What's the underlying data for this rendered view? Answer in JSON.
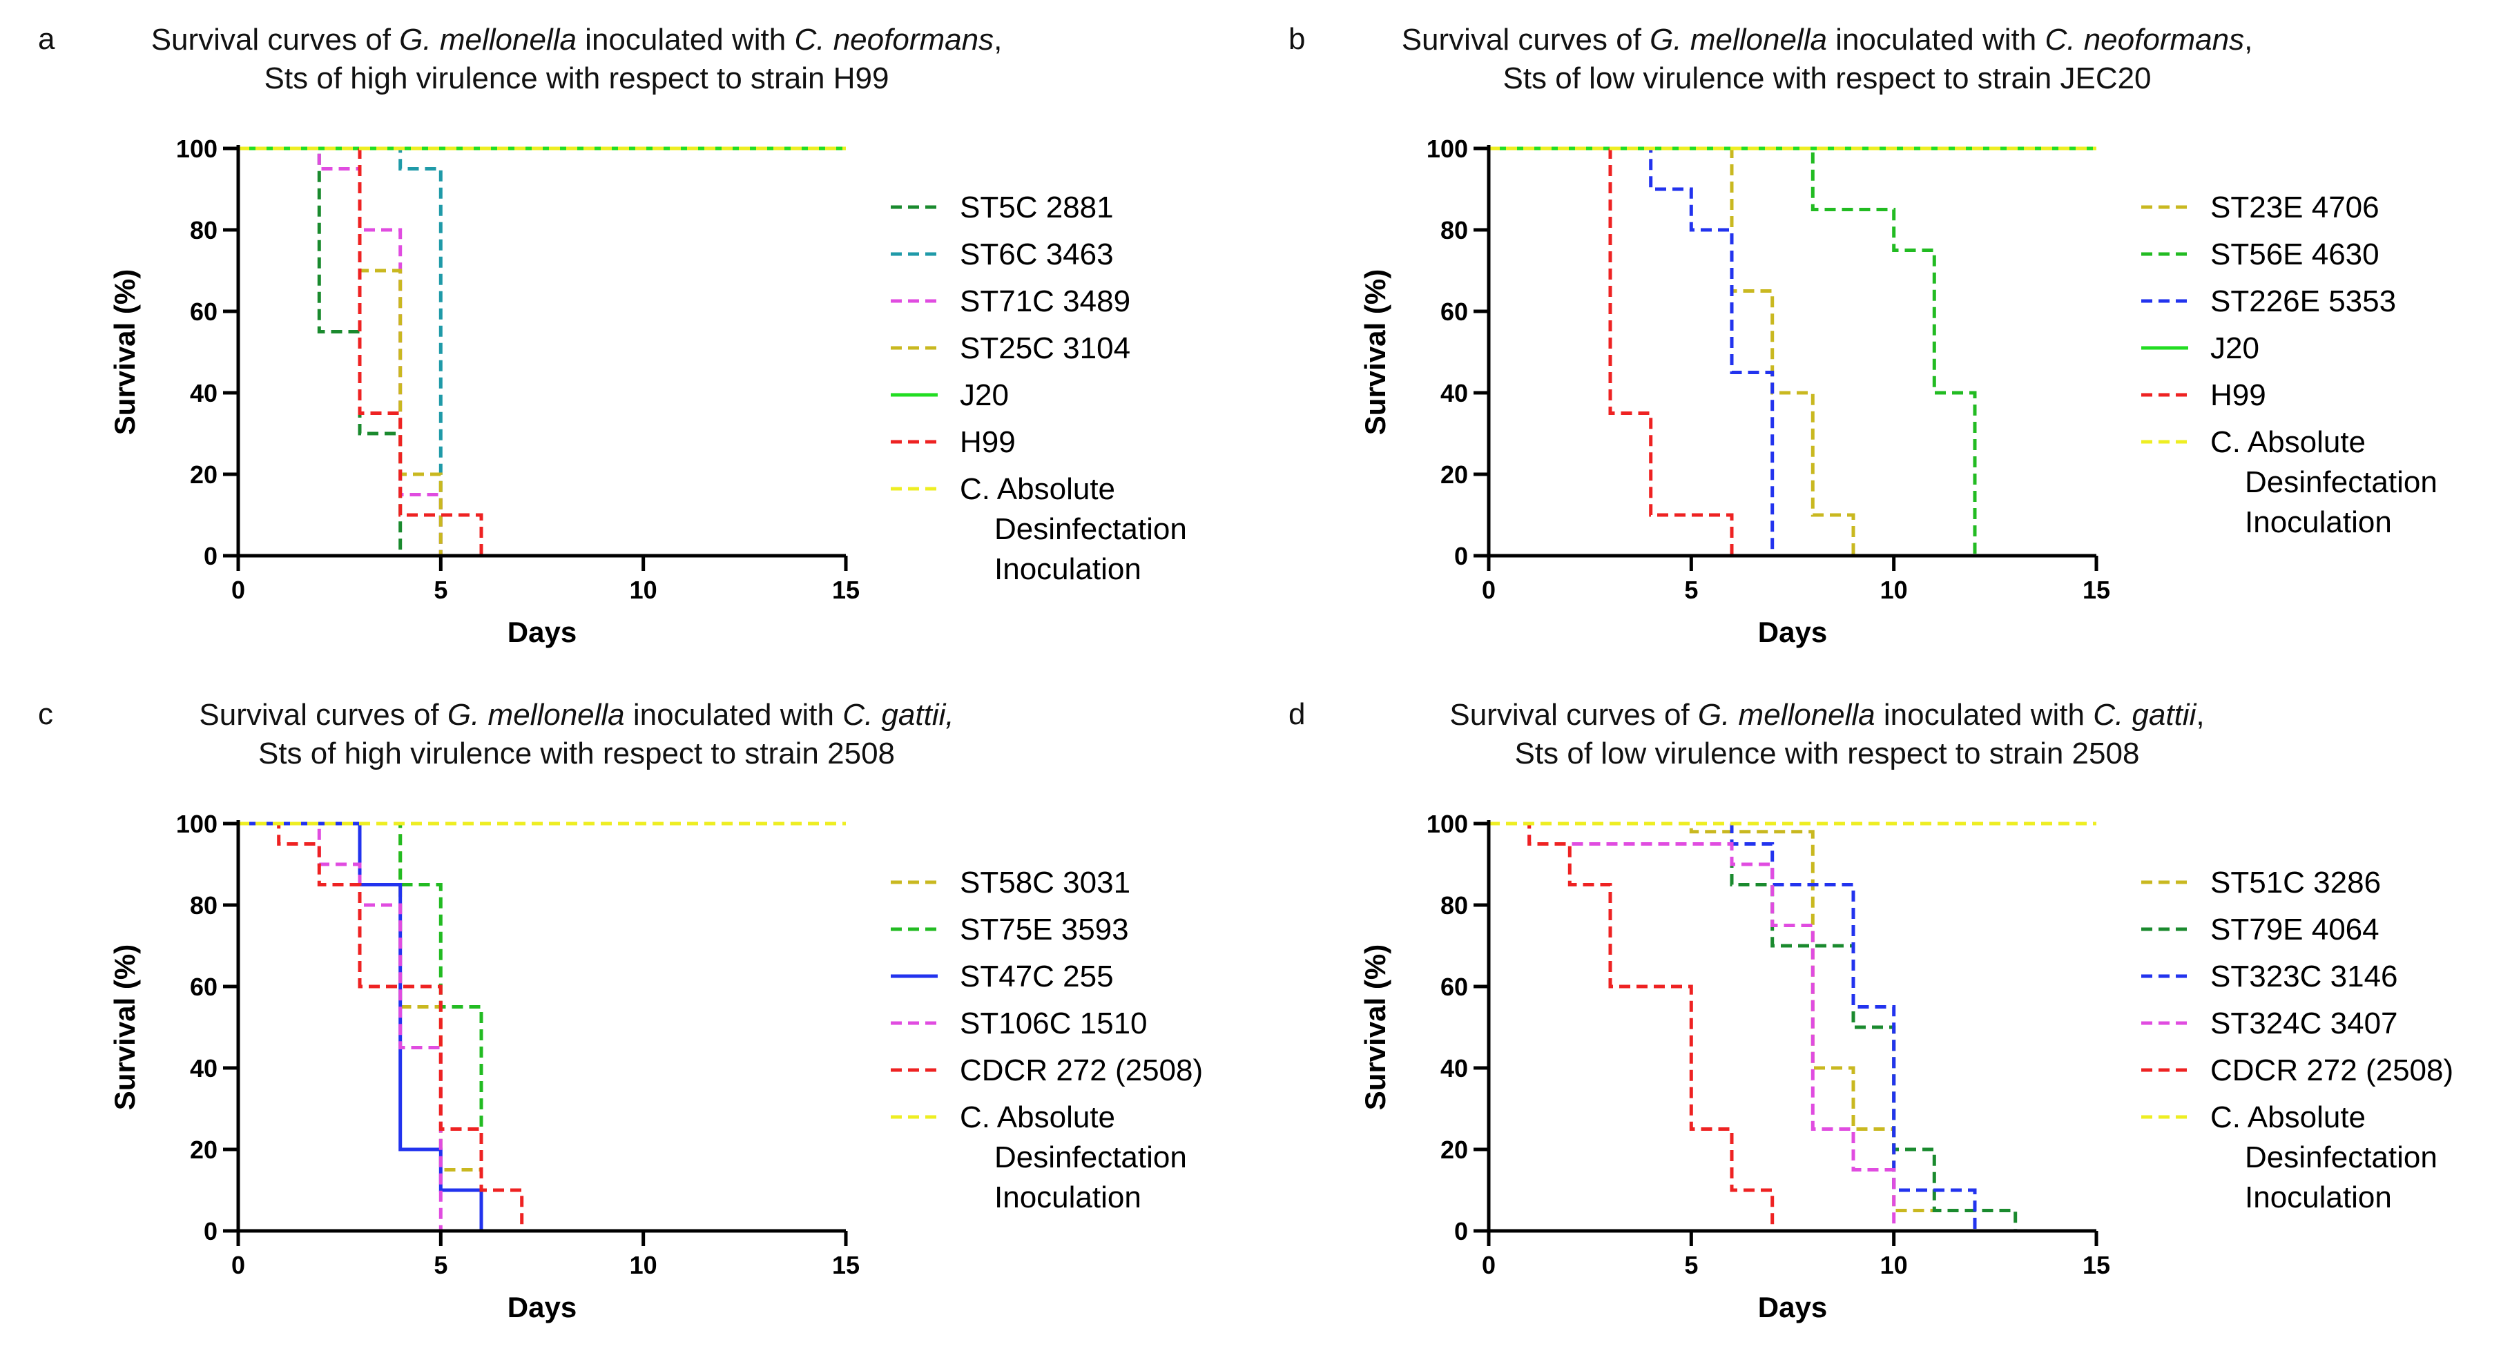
{
  "chart_data": [
    {
      "panel": "a",
      "type": "line",
      "step": true,
      "title_line1_pre": "Survival curves of ",
      "title_line1_it1": "G. mellonella",
      "title_line1_mid": " inoculated with ",
      "title_line1_it2": "C. neoformans",
      "title_line1_post": ",",
      "title_line2": "Sts of high virulence with respect to strain H99",
      "xlabel": "Days",
      "ylabel": "Survival (%)",
      "xlim": [
        0,
        15
      ],
      "ylim": [
        0,
        100
      ],
      "xticks": [
        "0",
        "5",
        "10",
        "15"
      ],
      "yticks": [
        "0",
        "20",
        "40",
        "60",
        "80",
        "100"
      ],
      "legend_position": "right",
      "series": [
        {
          "name": "ST5C 2881",
          "color": "#1a8a2e",
          "dash": true,
          "points": [
            [
              0,
              100
            ],
            [
              2,
              100
            ],
            [
              2,
              55
            ],
            [
              3,
              55
            ],
            [
              3,
              30
            ],
            [
              4,
              30
            ],
            [
              4,
              0
            ]
          ]
        },
        {
          "name": "ST6C 3463",
          "color": "#1f9aa8",
          "dash": true,
          "points": [
            [
              0,
              100
            ],
            [
              4,
              100
            ],
            [
              4,
              95
            ],
            [
              5,
              95
            ],
            [
              5,
              0
            ]
          ]
        },
        {
          "name": "ST71C 3489",
          "color": "#e04ce0",
          "dash": true,
          "points": [
            [
              0,
              100
            ],
            [
              2,
              100
            ],
            [
              2,
              95
            ],
            [
              3,
              95
            ],
            [
              3,
              80
            ],
            [
              4,
              80
            ],
            [
              4,
              15
            ],
            [
              5,
              15
            ],
            [
              5,
              0
            ]
          ]
        },
        {
          "name": "ST25C 3104",
          "color": "#c9b820",
          "dash": true,
          "points": [
            [
              0,
              100
            ],
            [
              3,
              100
            ],
            [
              3,
              70
            ],
            [
              4,
              70
            ],
            [
              4,
              20
            ],
            [
              5,
              20
            ],
            [
              5,
              0
            ]
          ]
        },
        {
          "name": "J20",
          "color": "#22dd22",
          "dash": false,
          "points": [
            [
              0,
              100
            ],
            [
              15,
              100
            ]
          ]
        },
        {
          "name": "H99",
          "color": "#ee2222",
          "dash": true,
          "points": [
            [
              0,
              100
            ],
            [
              3,
              100
            ],
            [
              3,
              35
            ],
            [
              4,
              35
            ],
            [
              4,
              10
            ],
            [
              6,
              10
            ],
            [
              6,
              0
            ]
          ]
        },
        {
          "name": "C. Absolute",
          "color": "#eeee22",
          "dash": true,
          "points": [
            [
              0,
              100
            ],
            [
              15,
              100
            ]
          ]
        }
      ],
      "legend_extra": [
        "Desinfectation",
        "Inoculation"
      ]
    },
    {
      "panel": "b",
      "type": "line",
      "step": true,
      "title_line1_pre": "Survival curves of ",
      "title_line1_it1": "G. mellonella",
      "title_line1_mid": " inoculated with ",
      "title_line1_it2": "C. neoformans",
      "title_line1_post": ",",
      "title_line2": "Sts of low virulence with respect to strain JEC20",
      "xlabel": "Days",
      "ylabel": "Survival (%)",
      "xlim": [
        0,
        15
      ],
      "ylim": [
        0,
        100
      ],
      "xticks": [
        "0",
        "5",
        "10",
        "15"
      ],
      "yticks": [
        "0",
        "20",
        "40",
        "60",
        "80",
        "100"
      ],
      "legend_position": "right",
      "series": [
        {
          "name": "ST23E 4706",
          "color": "#c9b820",
          "dash": true,
          "points": [
            [
              0,
              100
            ],
            [
              6,
              100
            ],
            [
              6,
              65
            ],
            [
              7,
              65
            ],
            [
              7,
              40
            ],
            [
              8,
              40
            ],
            [
              8,
              10
            ],
            [
              9,
              10
            ],
            [
              9,
              0
            ]
          ]
        },
        {
          "name": "ST56E 4630",
          "color": "#22bb22",
          "dash": true,
          "points": [
            [
              0,
              100
            ],
            [
              8,
              100
            ],
            [
              8,
              85
            ],
            [
              10,
              85
            ],
            [
              10,
              75
            ],
            [
              11,
              75
            ],
            [
              11,
              40
            ],
            [
              12,
              40
            ],
            [
              12,
              0
            ]
          ]
        },
        {
          "name": "ST226E 5353",
          "color": "#2233ee",
          "dash": true,
          "points": [
            [
              0,
              100
            ],
            [
              4,
              100
            ],
            [
              4,
              90
            ],
            [
              5,
              90
            ],
            [
              5,
              80
            ],
            [
              6,
              80
            ],
            [
              6,
              45
            ],
            [
              7,
              45
            ],
            [
              7,
              0
            ]
          ]
        },
        {
          "name": "J20",
          "color": "#22dd22",
          "dash": false,
          "points": [
            [
              0,
              100
            ],
            [
              15,
              100
            ]
          ]
        },
        {
          "name": "H99",
          "color": "#ee2222",
          "dash": true,
          "points": [
            [
              0,
              100
            ],
            [
              3,
              100
            ],
            [
              3,
              35
            ],
            [
              4,
              35
            ],
            [
              4,
              10
            ],
            [
              6,
              10
            ],
            [
              6,
              0
            ]
          ]
        },
        {
          "name": "C. Absolute",
          "color": "#eeee22",
          "dash": true,
          "points": [
            [
              0,
              100
            ],
            [
              15,
              100
            ]
          ]
        }
      ],
      "legend_extra": [
        "Desinfectation",
        "Inoculation"
      ]
    },
    {
      "panel": "c",
      "type": "line",
      "step": true,
      "title_line1_pre": "Survival curves of ",
      "title_line1_it1": "G. mellonella",
      "title_line1_mid": " inoculated with ",
      "title_line1_it2": "C. gattii,",
      "title_line1_post": "",
      "title_line2": "Sts of high virulence with respect to strain 2508",
      "xlabel": "Days",
      "ylabel": "Survival (%)",
      "xlim": [
        0,
        15
      ],
      "ylim": [
        0,
        100
      ],
      "xticks": [
        "0",
        "5",
        "10",
        "15"
      ],
      "yticks": [
        "0",
        "20",
        "40",
        "60",
        "80",
        "100"
      ],
      "legend_position": "right",
      "series": [
        {
          "name": "ST58C 3031",
          "color": "#c9b820",
          "dash": true,
          "points": [
            [
              0,
              100
            ],
            [
              4,
              100
            ],
            [
              4,
              55
            ],
            [
              5,
              55
            ],
            [
              5,
              15
            ],
            [
              6,
              15
            ],
            [
              6,
              0
            ]
          ]
        },
        {
          "name": "ST75E 3593",
          "color": "#22bb22",
          "dash": true,
          "points": [
            [
              0,
              100
            ],
            [
              4,
              100
            ],
            [
              4,
              85
            ],
            [
              5,
              85
            ],
            [
              5,
              55
            ],
            [
              6,
              55
            ],
            [
              6,
              0
            ]
          ]
        },
        {
          "name": "ST47C 255",
          "color": "#2233ee",
          "dash": false,
          "points": [
            [
              0,
              100
            ],
            [
              3,
              100
            ],
            [
              3,
              85
            ],
            [
              4,
              85
            ],
            [
              4,
              20
            ],
            [
              5,
              20
            ],
            [
              5,
              10
            ],
            [
              6,
              10
            ],
            [
              6,
              0
            ]
          ]
        },
        {
          "name": "ST106C 1510",
          "color": "#e04ce0",
          "dash": true,
          "points": [
            [
              0,
              100
            ],
            [
              2,
              100
            ],
            [
              2,
              90
            ],
            [
              3,
              90
            ],
            [
              3,
              80
            ],
            [
              4,
              80
            ],
            [
              4,
              45
            ],
            [
              5,
              45
            ],
            [
              5,
              0
            ]
          ]
        },
        {
          "name": "CDCR 272 (2508)",
          "color": "#ee2222",
          "dash": true,
          "points": [
            [
              0,
              100
            ],
            [
              1,
              100
            ],
            [
              1,
              95
            ],
            [
              2,
              95
            ],
            [
              2,
              85
            ],
            [
              3,
              85
            ],
            [
              3,
              60
            ],
            [
              5,
              60
            ],
            [
              5,
              25
            ],
            [
              6,
              25
            ],
            [
              6,
              10
            ],
            [
              7,
              10
            ],
            [
              7,
              0
            ]
          ]
        },
        {
          "name": "C. Absolute",
          "color": "#eeee22",
          "dash": true,
          "points": [
            [
              0,
              100
            ],
            [
              15,
              100
            ]
          ]
        }
      ],
      "legend_extra": [
        "Desinfectation",
        "Inoculation"
      ]
    },
    {
      "panel": "d",
      "type": "line",
      "step": true,
      "title_line1_pre": "Survival curves of ",
      "title_line1_it1": "G. mellonella",
      "title_line1_mid": " inoculated with ",
      "title_line1_it2": "C. gattii",
      "title_line1_post": ",",
      "title_line2": "Sts of low virulence with respect to strain 2508",
      "xlabel": "Days",
      "ylabel": "Survival (%)",
      "xlim": [
        0,
        15
      ],
      "ylim": [
        0,
        100
      ],
      "xticks": [
        "0",
        "5",
        "10",
        "15"
      ],
      "yticks": [
        "0",
        "20",
        "40",
        "60",
        "80",
        "100"
      ],
      "legend_position": "right",
      "series": [
        {
          "name": "ST51C 3286",
          "color": "#c9b820",
          "dash": true,
          "points": [
            [
              0,
              100
            ],
            [
              5,
              100
            ],
            [
              5,
              98
            ],
            [
              8,
              98
            ],
            [
              8,
              40
            ],
            [
              9,
              40
            ],
            [
              9,
              25
            ],
            [
              10,
              25
            ],
            [
              10,
              5
            ],
            [
              12,
              5
            ],
            [
              12,
              0
            ]
          ]
        },
        {
          "name": "ST79E 4064",
          "color": "#1a8a2e",
          "dash": true,
          "points": [
            [
              0,
              100
            ],
            [
              6,
              100
            ],
            [
              6,
              85
            ],
            [
              7,
              85
            ],
            [
              7,
              70
            ],
            [
              9,
              70
            ],
            [
              9,
              50
            ],
            [
              10,
              50
            ],
            [
              10,
              20
            ],
            [
              11,
              20
            ],
            [
              11,
              5
            ],
            [
              13,
              5
            ],
            [
              13,
              0
            ]
          ]
        },
        {
          "name": "ST323C 3146",
          "color": "#2233ee",
          "dash": true,
          "points": [
            [
              0,
              100
            ],
            [
              6,
              100
            ],
            [
              6,
              95
            ],
            [
              7,
              95
            ],
            [
              7,
              85
            ],
            [
              9,
              85
            ],
            [
              9,
              55
            ],
            [
              10,
              55
            ],
            [
              10,
              10
            ],
            [
              12,
              10
            ],
            [
              12,
              0
            ]
          ]
        },
        {
          "name": "ST324C 3407",
          "color": "#e04ce0",
          "dash": true,
          "points": [
            [
              0,
              100
            ],
            [
              1,
              100
            ],
            [
              1,
              95
            ],
            [
              6,
              95
            ],
            [
              6,
              90
            ],
            [
              7,
              90
            ],
            [
              7,
              75
            ],
            [
              8,
              75
            ],
            [
              8,
              25
            ],
            [
              9,
              25
            ],
            [
              9,
              15
            ],
            [
              10,
              15
            ],
            [
              10,
              0
            ]
          ]
        },
        {
          "name": "CDCR 272 (2508)",
          "color": "#ee2222",
          "dash": true,
          "points": [
            [
              0,
              100
            ],
            [
              1,
              100
            ],
            [
              1,
              95
            ],
            [
              2,
              95
            ],
            [
              2,
              85
            ],
            [
              3,
              85
            ],
            [
              3,
              60
            ],
            [
              5,
              60
            ],
            [
              5,
              25
            ],
            [
              6,
              25
            ],
            [
              6,
              10
            ],
            [
              7,
              10
            ],
            [
              7,
              0
            ]
          ]
        },
        {
          "name": "C. Absolute",
          "color": "#eeee22",
          "dash": true,
          "points": [
            [
              0,
              100
            ],
            [
              15,
              100
            ]
          ]
        }
      ],
      "legend_extra": [
        "Desinfectation",
        "Inoculation"
      ]
    }
  ]
}
